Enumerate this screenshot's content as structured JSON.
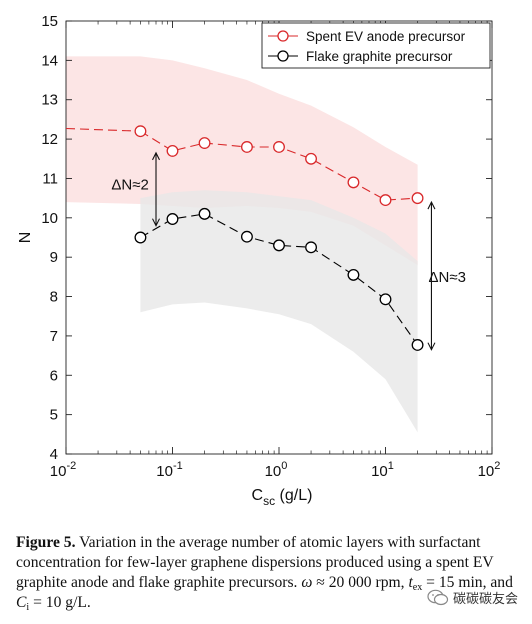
{
  "chart_data": {
    "type": "line",
    "x_scale": "log",
    "xlim": [
      0.01,
      100
    ],
    "ylim": [
      4,
      15
    ],
    "xlabel": "C",
    "xlabel_sub": "sc",
    "xlabel_units": "(g/L)",
    "ylabel": "N",
    "xticks": [
      {
        "value": 0.01,
        "base": "10",
        "exp": "-2"
      },
      {
        "value": 0.1,
        "base": "10",
        "exp": "-1"
      },
      {
        "value": 1,
        "base": "10",
        "exp": "0"
      },
      {
        "value": 10,
        "base": "10",
        "exp": "1"
      },
      {
        "value": 100,
        "base": "10",
        "exp": "2"
      }
    ],
    "yticks": [
      4,
      5,
      6,
      7,
      8,
      9,
      10,
      11,
      12,
      13,
      14,
      15
    ],
    "legend_position": "top-right",
    "series": [
      {
        "name": "Spent EV anode precursor",
        "color": "#d9292b",
        "x": [
          0.05,
          0.1,
          0.2,
          0.5,
          1,
          2,
          5,
          10,
          20
        ],
        "y": [
          12.2,
          11.7,
          11.9,
          11.8,
          11.8,
          11.5,
          10.9,
          10.45,
          10.5
        ],
        "trend_x": [
          0.01,
          0.05
        ],
        "trend_y": [
          12.27,
          12.2
        ],
        "band_x": [
          0.01,
          0.05,
          0.1,
          0.2,
          0.5,
          1,
          2,
          5,
          10,
          20
        ],
        "band_upper": [
          14.1,
          14.1,
          14.0,
          13.8,
          13.5,
          13.15,
          12.85,
          12.3,
          11.8,
          11.35
        ],
        "band_lower": [
          10.4,
          10.35,
          10.3,
          10.25,
          10.3,
          10.25,
          10.15,
          9.8,
          9.3,
          8.8
        ],
        "band_color": "#fbe1e1"
      },
      {
        "name": "Flake graphite precursor",
        "color": "#000000",
        "x": [
          0.05,
          0.1,
          0.2,
          0.5,
          1,
          2,
          5,
          10,
          20
        ],
        "y": [
          9.5,
          9.97,
          10.1,
          9.52,
          9.3,
          9.25,
          8.55,
          7.93,
          6.77
        ],
        "band_x": [
          0.05,
          0.1,
          0.2,
          0.5,
          1,
          2,
          5,
          10,
          20
        ],
        "band_upper": [
          10.5,
          10.65,
          10.7,
          10.65,
          10.55,
          10.45,
          10.0,
          9.6,
          8.9
        ],
        "band_lower": [
          7.6,
          7.8,
          7.85,
          7.7,
          7.55,
          7.3,
          6.6,
          5.9,
          4.55
        ],
        "band_color": "#e7e7e7"
      }
    ],
    "annotations": [
      {
        "text": "ΔN≈2",
        "x": 0.04,
        "y": 10.85,
        "arrow_x": 0.07,
        "arrow_y": [
          11.65,
          9.8
        ]
      },
      {
        "text": "ΔN≈3",
        "x": 38,
        "y": 8.5,
        "arrow_x": 27,
        "arrow_y": [
          10.4,
          6.65
        ]
      }
    ]
  },
  "caption": {
    "label": "Figure 5.",
    "text": "Variation in the average number of atomic layers with surfactant concentration for few-layer graphene dispersions produced using a spent EV graphite anode and flake graphite precursors.",
    "omega_symbol": "ω",
    "omega_value": "≈ 20 000 rpm,",
    "t_symbol": "t",
    "t_sub": "ex",
    "t_value": "= 15 min, and",
    "c_symbol": "C",
    "c_sub": "i",
    "c_value": "= 10 g/L."
  },
  "watermark": {
    "text": "碳碳碳友会",
    "icon": "wechat-icon"
  }
}
